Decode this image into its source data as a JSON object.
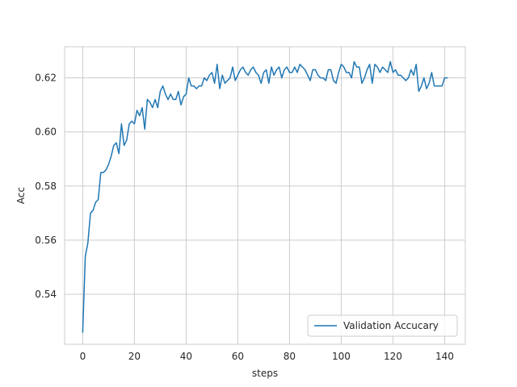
{
  "chart_data": {
    "type": "line",
    "title": "",
    "xlabel": "steps",
    "ylabel": "Acc",
    "xlim": [
      -7,
      148
    ],
    "ylim": [
      0.5215,
      0.6315
    ],
    "xticks": [
      0,
      20,
      40,
      60,
      80,
      100,
      120,
      140
    ],
    "yticks": [
      0.54,
      0.56,
      0.58,
      0.6,
      0.62
    ],
    "ytick_decimals": 2,
    "grid": true,
    "legend_position": "lower-right",
    "series": [
      {
        "name": "Validation Accucary",
        "color": "#1f77b4",
        "x": [
          0,
          1,
          2,
          3,
          4,
          5,
          6,
          7,
          8,
          9,
          10,
          11,
          12,
          13,
          14,
          15,
          16,
          17,
          18,
          19,
          20,
          21,
          22,
          23,
          24,
          25,
          26,
          27,
          28,
          29,
          30,
          31,
          32,
          33,
          34,
          35,
          36,
          37,
          38,
          39,
          40,
          41,
          42,
          43,
          44,
          45,
          46,
          47,
          48,
          49,
          50,
          51,
          52,
          53,
          54,
          55,
          56,
          57,
          58,
          59,
          60,
          61,
          62,
          63,
          64,
          65,
          66,
          67,
          68,
          69,
          70,
          71,
          72,
          73,
          74,
          75,
          76,
          77,
          78,
          79,
          80,
          81,
          82,
          83,
          84,
          85,
          86,
          87,
          88,
          89,
          90,
          91,
          92,
          93,
          94,
          95,
          96,
          97,
          98,
          99,
          100,
          101,
          102,
          103,
          104,
          105,
          106,
          107,
          108,
          109,
          110,
          111,
          112,
          113,
          114,
          115,
          116,
          117,
          118,
          119,
          120,
          121,
          122,
          123,
          124,
          125,
          126,
          127,
          128,
          129,
          130,
          131,
          132,
          133,
          134,
          135,
          136,
          137,
          138,
          139,
          140,
          141
        ],
        "values": [
          0.526,
          0.554,
          0.559,
          0.57,
          0.571,
          0.574,
          0.575,
          0.585,
          0.585,
          0.586,
          0.588,
          0.591,
          0.595,
          0.596,
          0.592,
          0.603,
          0.595,
          0.597,
          0.603,
          0.604,
          0.603,
          0.608,
          0.606,
          0.609,
          0.601,
          0.612,
          0.611,
          0.609,
          0.612,
          0.609,
          0.615,
          0.617,
          0.614,
          0.612,
          0.614,
          0.612,
          0.612,
          0.615,
          0.61,
          0.613,
          0.614,
          0.62,
          0.617,
          0.617,
          0.616,
          0.617,
          0.617,
          0.62,
          0.619,
          0.621,
          0.622,
          0.618,
          0.625,
          0.616,
          0.621,
          0.618,
          0.619,
          0.62,
          0.624,
          0.619,
          0.621,
          0.623,
          0.624,
          0.622,
          0.621,
          0.623,
          0.624,
          0.622,
          0.621,
          0.618,
          0.622,
          0.623,
          0.618,
          0.624,
          0.621,
          0.623,
          0.624,
          0.62,
          0.623,
          0.624,
          0.622,
          0.622,
          0.624,
          0.622,
          0.625,
          0.624,
          0.623,
          0.621,
          0.619,
          0.623,
          0.623,
          0.621,
          0.62,
          0.62,
          0.619,
          0.623,
          0.623,
          0.619,
          0.618,
          0.622,
          0.625,
          0.624,
          0.622,
          0.622,
          0.62,
          0.626,
          0.624,
          0.624,
          0.618,
          0.62,
          0.623,
          0.625,
          0.618,
          0.625,
          0.624,
          0.622,
          0.624,
          0.623,
          0.622,
          0.626,
          0.622,
          0.623,
          0.621,
          0.621,
          0.62,
          0.619,
          0.62,
          0.623,
          0.621,
          0.625,
          0.615,
          0.617,
          0.62,
          0.616,
          0.618,
          0.622,
          0.617,
          0.617,
          0.617,
          0.617,
          0.62,
          0.62
        ]
      }
    ]
  }
}
